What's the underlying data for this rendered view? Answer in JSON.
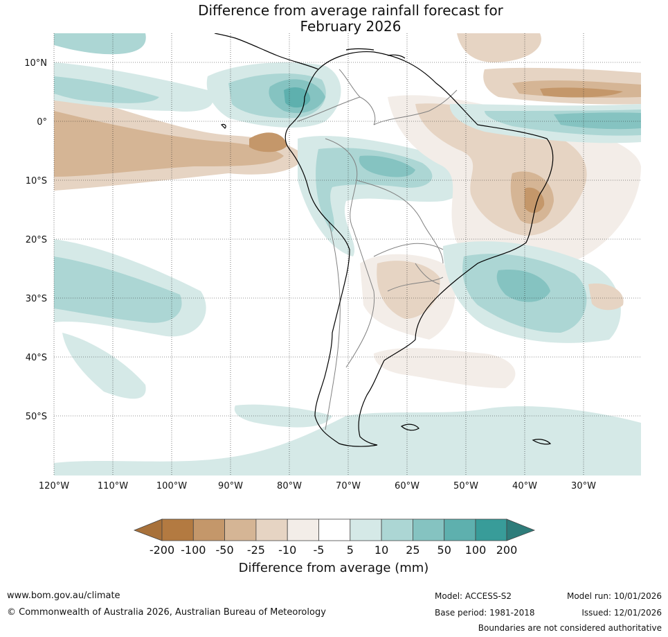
{
  "title": {
    "line1": "Difference from average rainfall forecast for",
    "line2": "February 2026"
  },
  "map": {
    "lat_labels": [
      "10°N",
      "0°",
      "10°S",
      "20°S",
      "30°S",
      "40°S",
      "50°S"
    ],
    "lon_labels": [
      "120°W",
      "110°W",
      "100°W",
      "90°W",
      "80°W",
      "70°W",
      "60°W",
      "50°W",
      "40°W",
      "30°W"
    ],
    "extent": {
      "lon_min": -120,
      "lon_max": -20,
      "lat_min": -60,
      "lat_max": 15
    }
  },
  "colorbar": {
    "tick_labels": [
      "-200",
      "-100",
      "-50",
      "-25",
      "-10",
      "-5",
      "5",
      "10",
      "25",
      "50",
      "100",
      "200"
    ],
    "colors": [
      "#a8713a",
      "#b37a41",
      "#c4976a",
      "#d5b595",
      "#e6d4c3",
      "#f3ede8",
      "#ffffff",
      "#d5e9e7",
      "#acd6d4",
      "#85c3c1",
      "#5eb0ae",
      "#389c99",
      "#2e7c7a"
    ],
    "title": "Difference from average (mm)"
  },
  "footer": {
    "website": "www.bom.gov.au/climate",
    "copyright": "© Commonwealth of Australia 2026, Australian Bureau of Meteorology",
    "model": "Model: ACCESS-S2",
    "base_period": "Base period: 1981-2018",
    "model_run": "Model run: 10/01/2026",
    "issued": "Issued: 12/01/2026",
    "disclaimer": "Boundaries are not considered authoritative"
  }
}
